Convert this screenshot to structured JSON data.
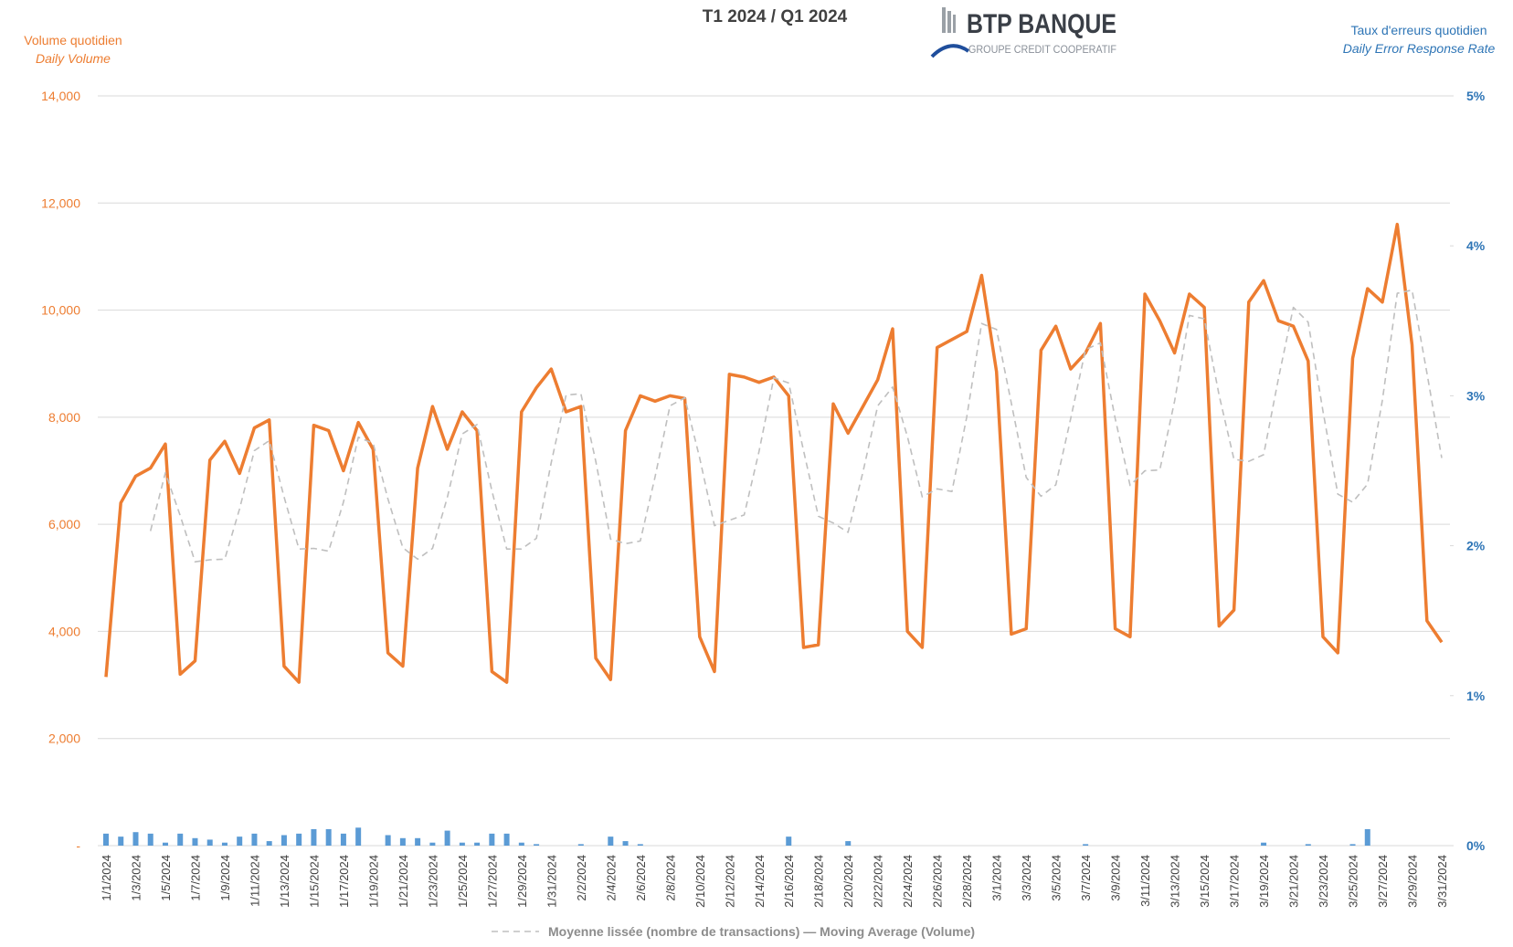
{
  "chart_data": {
    "type": "line",
    "title": "T1 2024 / Q1 2024",
    "logo": {
      "name": "BTP BANQUE",
      "tagline": "GROUPE CREDIT COOPERATIF"
    },
    "y_title": "Volume quotidien",
    "y_subtitle": "Daily Volume",
    "y2_title": "Taux d'erreurs quotidien",
    "y2_subtitle": "Daily Error Response Rate",
    "categories": [
      "1/1/2024",
      null,
      "1/3/2024",
      null,
      "1/5/2024",
      null,
      "1/7/2024",
      null,
      "1/9/2024",
      null,
      "1/11/2024",
      null,
      "1/13/2024",
      null,
      "1/15/2024",
      null,
      "1/17/2024",
      null,
      "1/19/2024",
      null,
      "1/21/2024",
      null,
      "1/23/2024",
      null,
      "1/25/2024",
      null,
      "1/27/2024",
      null,
      "1/29/2024",
      null,
      "1/31/2024",
      null,
      "2/2/2024",
      null,
      "2/4/2024",
      null,
      "2/6/2024",
      null,
      "2/8/2024",
      null,
      "2/10/2024",
      null,
      "2/12/2024",
      null,
      "2/14/2024",
      null,
      "2/16/2024",
      null,
      "2/18/2024",
      null,
      "2/20/2024",
      null,
      "2/22/2024",
      null,
      "2/24/2024",
      null,
      "2/26/2024",
      null,
      "2/28/2024",
      null,
      "3/1/2024",
      null,
      "3/3/2024",
      null,
      "3/5/2024",
      null,
      "3/7/2024",
      null,
      "3/9/2024",
      null,
      "3/11/2024",
      null,
      "3/13/2024",
      null,
      "3/15/2024",
      null,
      "3/17/2024",
      null,
      "3/19/2024",
      null,
      "3/21/2024",
      null,
      "3/23/2024",
      null,
      "3/25/2024",
      null,
      "3/27/2024",
      null,
      "3/29/2024",
      null,
      "3/31/2024"
    ],
    "series": [
      {
        "type": "line",
        "color": "#ed7d31",
        "axis": "y",
        "values": [
          3150,
          6400,
          6900,
          7050,
          7500,
          3200,
          3450,
          7200,
          7550,
          6950,
          7800,
          7950,
          3350,
          3050,
          7850,
          7750,
          7000,
          7900,
          7400,
          3600,
          3350,
          7050,
          8200,
          7400,
          8100,
          7750,
          3250,
          3050,
          8100,
          8550,
          8900,
          8100,
          8200,
          3500,
          3100,
          7750,
          8400,
          8300,
          8400,
          8350,
          3900,
          3250,
          8800,
          8750,
          8650,
          8750,
          8400,
          3700,
          3750,
          8250,
          7700,
          8200,
          8700,
          9650,
          4000,
          3700,
          9300,
          9450,
          9600,
          10650,
          8850,
          3950,
          4050,
          9250,
          9700,
          8900,
          9200,
          9750,
          4050,
          3900,
          10300,
          9800,
          9200,
          10300,
          10050,
          4100,
          4400,
          10150,
          10550,
          9800,
          9700,
          9050,
          3900,
          3600,
          9100,
          10400,
          10150,
          11600,
          9350,
          4200,
          3800
        ]
      },
      {
        "type": "line",
        "name": "Moyenne lissée (nombre de transactions) — Moving Average (Volume)",
        "color": "#bfbfbf",
        "dashed": true,
        "axis": "y",
        "values": [
          null,
          null,
          null,
          5875,
          6963,
          6163,
          5300,
          5338,
          5350,
          6288,
          7375,
          7563,
          6513,
          5538,
          5550,
          5500,
          6413,
          7625,
          7513,
          6475,
          5563,
          5350,
          5550,
          6500,
          7688,
          7863,
          6625,
          5538,
          5538,
          5738,
          7150,
          8413,
          8438,
          7175,
          5725,
          5638,
          5688,
          6888,
          8213,
          8363,
          7238,
          5975,
          6075,
          6175,
          7363,
          8738,
          8638,
          7375,
          6150,
          6025,
          5850,
          6975,
          8213,
          8563,
          7638,
          6513,
          6663,
          6613,
          8013,
          9750,
          9638,
          8263,
          6875,
          6525,
          6738,
          7975,
          9263,
          9388,
          7975,
          6725,
          7000,
          7013,
          8300,
          9900,
          9838,
          8413,
          7213,
          7175,
          7300,
          8725,
          10050,
          9775,
          8113,
          6563,
          6413,
          6750,
          8313,
          10313,
          10375,
          8825,
          7238
        ]
      },
      {
        "type": "bar",
        "color": "#5b9bd5",
        "axis": "y2",
        "values": [
          0.08,
          0.06,
          0.09,
          0.08,
          0.02,
          0.08,
          0.05,
          0.04,
          0.02,
          0.06,
          0.08,
          0.03,
          0.07,
          0.08,
          0.11,
          0.11,
          0.08,
          0.12,
          0,
          0.07,
          0.05,
          0.05,
          0.02,
          0.1,
          0.02,
          0.02,
          0.08,
          0.08,
          0.02,
          0.01,
          0,
          0,
          0.01,
          0,
          0.06,
          0.03,
          0.01,
          0,
          0,
          0,
          0,
          0,
          0,
          0,
          0,
          0,
          0.06,
          0,
          0,
          0,
          0.03,
          0,
          0,
          0,
          0,
          0,
          0,
          0,
          0,
          0,
          0,
          0,
          0,
          0,
          0,
          0,
          0.01,
          0,
          0,
          0,
          0,
          0,
          0,
          0,
          0,
          0,
          0,
          0,
          0.02,
          0,
          0,
          0.01,
          0,
          0,
          0.01,
          0.11,
          0,
          0,
          0,
          0,
          0
        ]
      }
    ],
    "ylim": [
      0,
      14000
    ],
    "yticks": [
      {
        "value": 0,
        "label": "-"
      },
      {
        "value": 2000,
        "label": "2,000"
      },
      {
        "value": 4000,
        "label": "4,000"
      },
      {
        "value": 6000,
        "label": "6,000"
      },
      {
        "value": 8000,
        "label": "8,000"
      },
      {
        "value": 10000,
        "label": "10,000"
      },
      {
        "value": 12000,
        "label": "12,000"
      },
      {
        "value": 14000,
        "label": "14,000"
      }
    ],
    "y2lim": [
      0,
      5
    ],
    "y2ticks": [
      {
        "value": 0,
        "label": "0%"
      },
      {
        "value": 1,
        "label": "1%"
      },
      {
        "value": 2,
        "label": "2%"
      },
      {
        "value": 3,
        "label": "3%"
      },
      {
        "value": 4,
        "label": "4%"
      },
      {
        "value": 5,
        "label": "5%"
      }
    ],
    "grid": true,
    "legend": "bottom"
  }
}
